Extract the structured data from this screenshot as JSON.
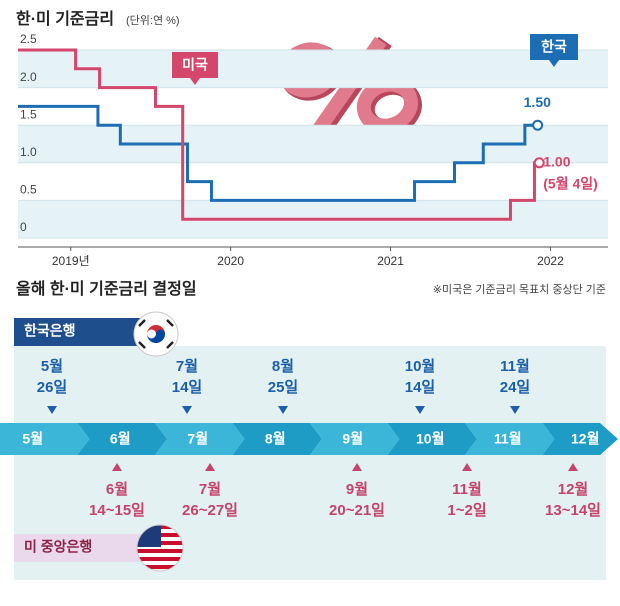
{
  "chart_data": {
    "type": "line",
    "step": "post",
    "title": "한·미 기준금리",
    "subtitle": "(단위:연 %)",
    "xlim": [
      2018.67,
      2022.36
    ],
    "ylim": [
      0,
      2.5
    ],
    "xticks": [
      {
        "value": 2019,
        "label": "2019년"
      },
      2020,
      2021,
      2022
    ],
    "yticks": [
      0,
      0.5,
      {
        "value": 1,
        "label": "1.0"
      },
      1.5,
      {
        "value": 2,
        "label": "2.0"
      },
      2.5
    ],
    "grid": true,
    "series": [
      {
        "name": "한국",
        "color": "#1c6db3",
        "x": [
          2018.67,
          2019.17,
          2019.31,
          2019.73,
          2019.88,
          2021.15,
          2021.4,
          2021.58,
          2021.84,
          2021.92
        ],
        "values": [
          1.75,
          1.5,
          1.25,
          0.75,
          0.5,
          0.75,
          1.0,
          1.25,
          1.5,
          1.5
        ],
        "value_labels": [
          null,
          null,
          null,
          null,
          null,
          null,
          null,
          null,
          null,
          "1.50"
        ]
      },
      {
        "name": "미국",
        "color": "#d4466c",
        "x": [
          2018.67,
          2019.03,
          2019.18,
          2019.53,
          2019.7,
          2021.75,
          2021.9,
          2021.93
        ],
        "values": [
          2.5,
          2.25,
          2.0,
          1.75,
          0.25,
          0.5,
          1.0,
          1.0
        ],
        "value_labels": [
          null,
          null,
          null,
          null,
          null,
          null,
          null,
          "1.00"
        ]
      }
    ],
    "annotation": "(5월 4일)"
  },
  "timeline": {
    "title": "올해 한·미 기준금리 결정일",
    "note": "※미국은 기준금리 목표치 중상단 기준",
    "months": [
      "5월",
      "6월",
      "7월",
      "8월",
      "9월",
      "10월",
      "11월",
      "12월"
    ],
    "korea": {
      "name": "한국은행",
      "dates": [
        [
          "5월",
          "26일"
        ],
        [
          "7월",
          "14일"
        ],
        [
          "8월",
          "25일"
        ],
        [
          "10월",
          "14일"
        ],
        [
          "11월",
          "24일"
        ]
      ]
    },
    "us": {
      "name": "미 중앙은행",
      "dates": [
        [
          "6월",
          "14~15일"
        ],
        [
          "7월",
          "26~27일"
        ],
        [
          "9월",
          "20~21일"
        ],
        [
          "11월",
          "1~2일"
        ],
        [
          "12월",
          "13~14일"
        ]
      ]
    }
  }
}
